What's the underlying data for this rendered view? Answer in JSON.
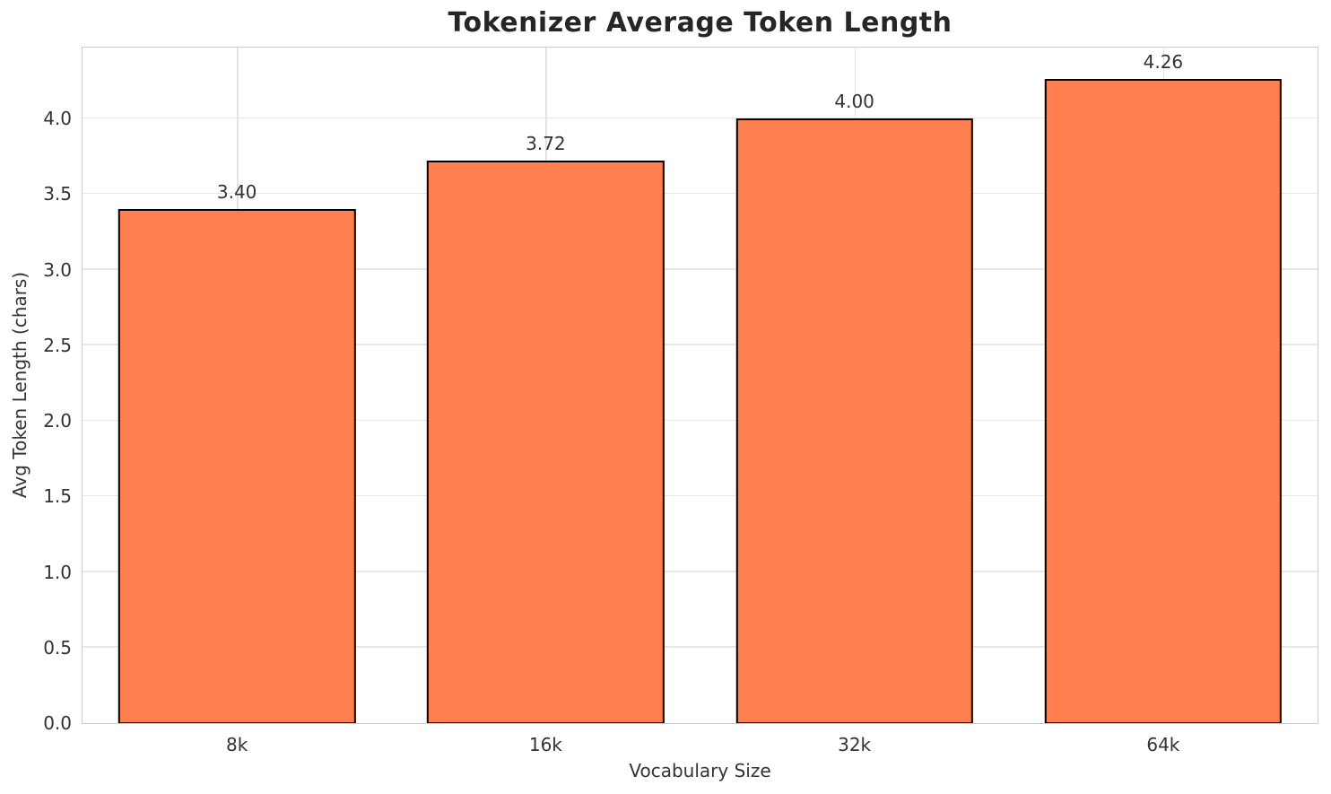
{
  "chart_data": {
    "type": "bar",
    "title": "Tokenizer Average Token Length",
    "xlabel": "Vocabulary Size",
    "ylabel": "Avg Token Length (chars)",
    "categories": [
      "8k",
      "16k",
      "32k",
      "64k"
    ],
    "values": [
      3.4,
      3.72,
      4.0,
      4.26
    ],
    "value_labels": [
      "3.40",
      "3.72",
      "4.00",
      "4.26"
    ],
    "ytick_labels": [
      "0.0",
      "0.5",
      "1.0",
      "1.5",
      "2.0",
      "2.5",
      "3.0",
      "3.5",
      "4.0"
    ],
    "yticks": [
      0.0,
      0.5,
      1.0,
      1.5,
      2.0,
      2.5,
      3.0,
      3.5,
      4.0
    ],
    "ylim": [
      0,
      4.47
    ],
    "grid": true,
    "legend": "none",
    "bar_color": "#FF7F50",
    "bar_edge_color": "#000000"
  },
  "colors": {
    "background": "#ffffff",
    "grid_h": "#e7e7e7",
    "grid_v": "#e2e2e2",
    "spine": "#cccccc",
    "title_text": "#262626",
    "tick_text": "#333333"
  }
}
